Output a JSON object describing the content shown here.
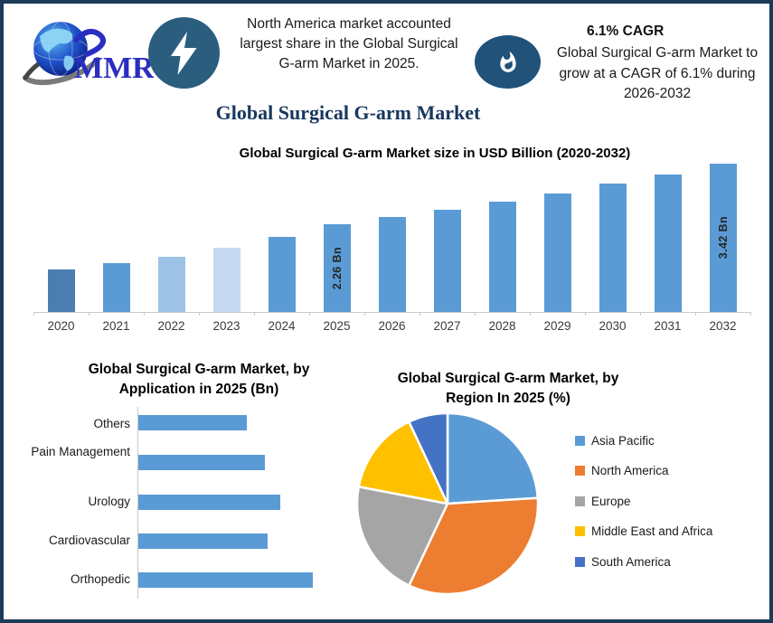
{
  "theme": {
    "border_color": "#1b3b58",
    "accent_blue": "#5b9bd5",
    "icon_circle_blue": "#2b5d7f",
    "title_navy": "#17375d"
  },
  "header": {
    "logo": {
      "brand": "MMR",
      "icon": "globe-swoosh-logo"
    },
    "callout_left": {
      "icon": "lightning-icon",
      "lines": [
        "North America market accounted",
        "largest share in the Global Surgical",
        "G-arm Market in 2025."
      ]
    },
    "callout_right": {
      "icon": "flame-icon",
      "heading": "6.1% CAGR",
      "lines": [
        "Global Surgical G-arm Market to",
        "grow at a CAGR of 6.1% during",
        "2026-2032"
      ]
    }
  },
  "main_title": "Global Surgical G-arm Market",
  "chart_data": [
    {
      "id": "market_size",
      "type": "bar",
      "title": "Global Surgical G-arm Market size in USD Billion (2020-2032)",
      "xlabel": "",
      "ylabel": "USD Billion",
      "grid": false,
      "categories": [
        "2020",
        "2021",
        "2022",
        "2023",
        "2024",
        "2025",
        "2026",
        "2027",
        "2028",
        "2029",
        "2030",
        "2031",
        "2032"
      ],
      "values": [
        1.4,
        1.52,
        1.65,
        1.82,
        2.03,
        2.26,
        2.4,
        2.54,
        2.7,
        2.86,
        3.04,
        3.22,
        3.42
      ],
      "data_labels": [
        {
          "category": "2025",
          "text": "2.26 Bn"
        },
        {
          "category": "2032",
          "text": "3.42 Bn"
        }
      ],
      "bar_colors": [
        "#4a7eb0",
        "#5b9bd5",
        "#9dc3e6",
        "#c5d9f1",
        "#5b9bd5",
        "#5b9bd5",
        "#5b9bd5",
        "#5b9bd5",
        "#5b9bd5",
        "#5b9bd5",
        "#5b9bd5",
        "#5b9bd5",
        "#5b9bd5"
      ]
    },
    {
      "id": "by_application",
      "type": "bar",
      "orientation": "horizontal",
      "title_lines": [
        "Global Surgical G-arm Market, by",
        "Application in 2025 (Bn)"
      ],
      "categories": [
        "Others",
        "Pain Management",
        "Urology",
        "Cardiovascular",
        "Orthopedic"
      ],
      "values": [
        0.36,
        0.42,
        0.47,
        0.43,
        0.58
      ],
      "bar_color": "#5b9bd5",
      "grid": false
    },
    {
      "id": "by_region",
      "type": "pie",
      "title_lines": [
        "Global Surgical G-arm Market, by",
        "Region In 2025 (%)"
      ],
      "start_angle_deg": 0,
      "direction": "clockwise",
      "legend_position": "right",
      "slices": [
        {
          "label": "Asia Pacific",
          "value": 24,
          "color": "#5b9bd5"
        },
        {
          "label": "North America",
          "value": 33,
          "color": "#ed7d31"
        },
        {
          "label": "Europe",
          "value": 21,
          "color": "#a5a5a5"
        },
        {
          "label": "Middle East and Africa",
          "value": 15,
          "color": "#ffc000"
        },
        {
          "label": "South America",
          "value": 7,
          "color": "#4472c4"
        }
      ]
    }
  ]
}
